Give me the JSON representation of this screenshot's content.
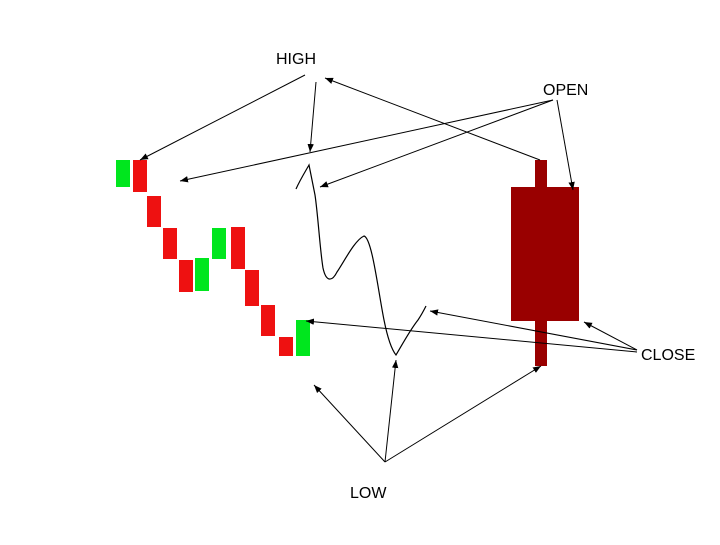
{
  "labels": {
    "high": "HIGH",
    "open": "OPEN",
    "close": "CLOSE",
    "low": "LOW"
  },
  "colors": {
    "up": "#00e61e",
    "down": "#ee1111",
    "candle": "#990000",
    "line": "#000000"
  }
}
